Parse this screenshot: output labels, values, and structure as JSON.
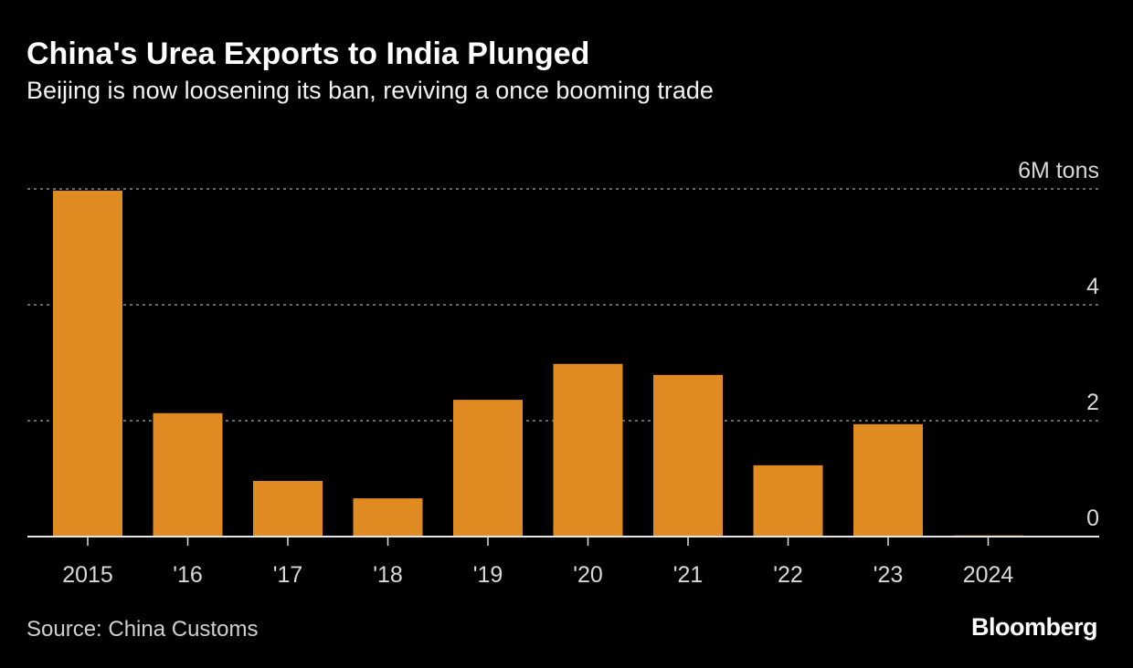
{
  "title": "China's Urea Exports to India Plunged",
  "subtitle": "Beijing is now loosening its ban, reviving a once booming trade",
  "source": "Source: China Customs",
  "logo": "Bloomberg",
  "chart_data": {
    "type": "bar",
    "title": "China's Urea Exports to India Plunged",
    "subtitle": "Beijing is now loosening its ban, reviving a once booming trade",
    "categories": [
      "2015",
      "'16",
      "'17",
      "'18",
      "'19",
      "'20",
      "'21",
      "'22",
      "'23",
      "2024"
    ],
    "values": [
      5.97,
      2.13,
      0.96,
      0.66,
      2.36,
      2.98,
      2.79,
      1.23,
      1.94,
      0.02
    ],
    "unit": "M tons",
    "ylim": [
      0,
      6
    ],
    "yticks": [
      {
        "value": 0,
        "label": "0"
      },
      {
        "value": 2,
        "label": "2"
      },
      {
        "value": 4,
        "label": "4"
      },
      {
        "value": 6,
        "label": "6M tons"
      }
    ],
    "grid": true,
    "bar_color": "#e08b22",
    "axis_side": "right"
  }
}
